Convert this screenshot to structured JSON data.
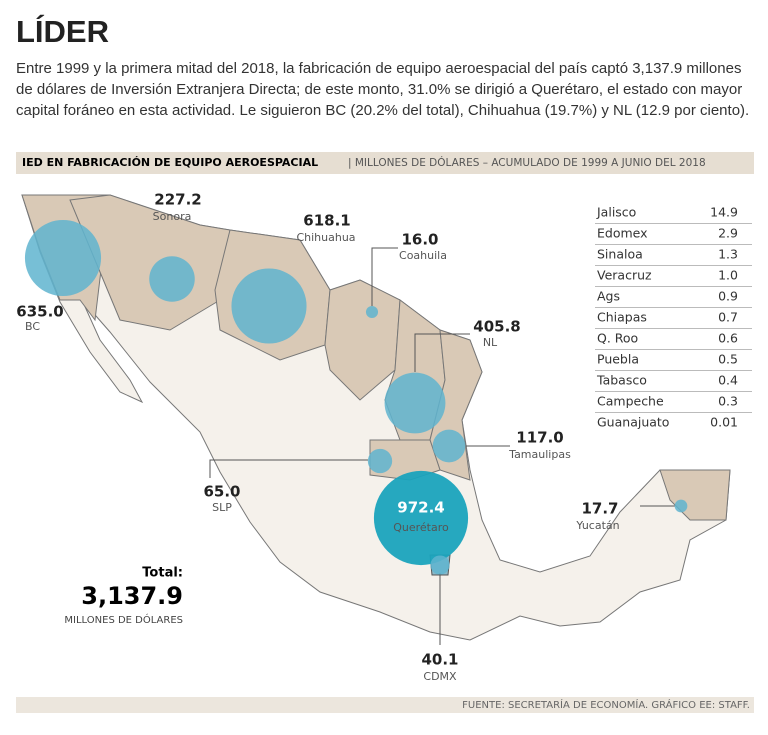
{
  "header": {
    "title": "LÍDER",
    "body": "Entre 1999 y la primera mitad del 2018, la fabricación de equipo aeroespacial del país captó 3,137.9 millones de dólares de Inversión Extranjera Directa; de este monto, 31.0% se dirigió a Querétaro, el estado con mayor capital foráneo en esta actividad. Le siguieron BC (20.2% del total), Chihuahua (19.7%) y NL (12.9 por ciento)."
  },
  "subtitle": {
    "main": "IED EN FABRICACIÓN DE EQUIPO AEROESPACIAL",
    "detail": "| MILLONES DE DÓLARES – ACUMULADO DE 1999 A JUNIO DEL 2018"
  },
  "bubbles": [
    {
      "label": "BC",
      "value": 635.0,
      "value_label": "635.0"
    },
    {
      "label": "Sonora",
      "value": 227.2,
      "value_label": "227.2"
    },
    {
      "label": "Chihuahua",
      "value": 618.1,
      "value_label": "618.1"
    },
    {
      "label": "Coahuila",
      "value": 16.0,
      "value_label": "16.0"
    },
    {
      "label": "NL",
      "value": 405.8,
      "value_label": "405.8"
    },
    {
      "label": "Tamaulipas",
      "value": 117.0,
      "value_label": "117.0"
    },
    {
      "label": "SLP",
      "value": 65.0,
      "value_label": "65.0"
    },
    {
      "label": "Querétaro",
      "value": 972.4,
      "value_label": "972.4"
    },
    {
      "label": "CDMX",
      "value": 40.1,
      "value_label": "40.1"
    },
    {
      "label": "Yucatán",
      "value": 17.7,
      "value_label": "17.7"
    }
  ],
  "table": {
    "rows": [
      [
        "Jalisco",
        "14.9"
      ],
      [
        "Edomex",
        "2.9"
      ],
      [
        "Sinaloa",
        "1.3"
      ],
      [
        "Veracruz",
        "1.0"
      ],
      [
        "Ags",
        "0.9"
      ],
      [
        "Chiapas",
        "0.7"
      ],
      [
        "Q. Roo",
        "0.6"
      ],
      [
        "Puebla",
        "0.5"
      ],
      [
        "Tabasco",
        "0.4"
      ],
      [
        "Campeche",
        "0.3"
      ],
      [
        "Guanajuato",
        "0.01"
      ]
    ]
  },
  "total": {
    "label": "Total:",
    "value": "3,137.9",
    "unit": "MILLONES DE DÓLARES"
  },
  "source": "FUENTE: SECRETARÍA DE ECONOMÍA. GRÁFICO EE: STAFF."
}
